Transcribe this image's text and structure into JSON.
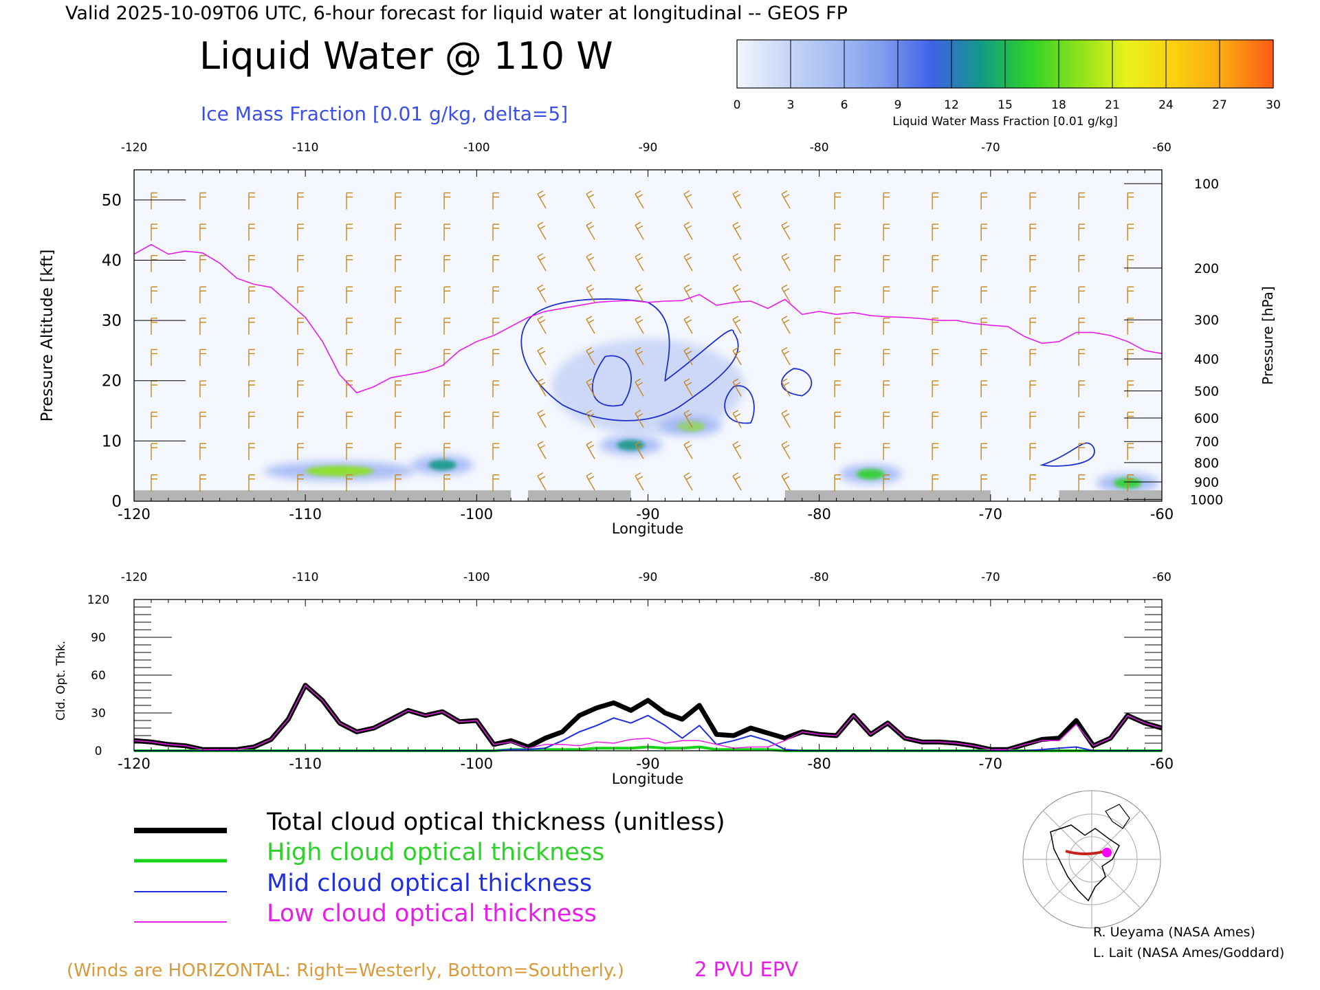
{
  "header": {
    "valid_line": "Valid 2025-10-09T06 UTC, 6-hour forecast for liquid water at longitudinal -- GEOS FP",
    "main_title": "Liquid Water @ 110 W",
    "subtitle": "Ice Mass Fraction [0.01 g/kg, delta=5]"
  },
  "colorbar": {
    "ticks": [
      "0",
      "3",
      "6",
      "9",
      "12",
      "15",
      "18",
      "21",
      "24",
      "27",
      "30"
    ],
    "label": "Liquid Water Mass Fraction [0.01 g/kg]",
    "colors": [
      "#f2f5fc",
      "#c9d7f7",
      "#a5bdf3",
      "#7f9cee",
      "#3f61e6",
      "#129a86",
      "#2ed12a",
      "#8be21a",
      "#e8f21a",
      "#fbcf10",
      "#fba513",
      "#fc5a16"
    ]
  },
  "chart_data": [
    {
      "type": "heatmap",
      "title": "Liquid Water @ 110 W",
      "xlabel": "Longitude",
      "ylabel": "Pressure Altitude [kft]",
      "ylabel_right": "Pressure [hPa]",
      "xlim": [
        -120,
        -60
      ],
      "ylim": [
        0,
        55
      ],
      "x_ticks": [
        "-120",
        "-110",
        "-100",
        "-90",
        "-80",
        "-70",
        "-60"
      ],
      "x_ticks_top": [
        "-120",
        "-110",
        "-100",
        "-90",
        "-80",
        "-70",
        "-60"
      ],
      "y_ticks": [
        "0",
        "10",
        "20",
        "30",
        "40",
        "50"
      ],
      "y_tick_values": [
        0,
        10,
        20,
        30,
        40,
        50
      ],
      "pressure_ticks": [
        {
          "label": "100",
          "alt": 52.7
        },
        {
          "label": "200",
          "alt": 38.7
        },
        {
          "label": "300",
          "alt": 30.1
        },
        {
          "label": "400",
          "alt": 23.6
        },
        {
          "label": "500",
          "alt": 18.3
        },
        {
          "label": "600",
          "alt": 13.8
        },
        {
          "label": "700",
          "alt": 9.9
        },
        {
          "label": "800",
          "alt": 6.4
        },
        {
          "label": "900",
          "alt": 3.2
        },
        {
          "label": "1000",
          "alt": 0.3
        }
      ],
      "pv2_line": {
        "name": "2 PVU EPV",
        "color": "#e81de8",
        "lon": [
          -120,
          -119,
          -118,
          -117,
          -116,
          -115,
          -114,
          -113,
          -112,
          -111,
          -110,
          -109,
          -108,
          -107,
          -106,
          -105,
          -104,
          -103,
          -102,
          -101,
          -100,
          -99,
          -98,
          -97,
          -96,
          -95,
          -94,
          -93,
          -92,
          -91,
          -90,
          -89,
          -88,
          -87,
          -86,
          -85,
          -84,
          -83,
          -82,
          -81,
          -80,
          -79,
          -78,
          -77,
          -76,
          -75,
          -74,
          -73,
          -72,
          -71,
          -70,
          -69,
          -68,
          -67,
          -66,
          -65,
          -64,
          -63,
          -62,
          -61,
          -60
        ],
        "alt": [
          41,
          42.6,
          41,
          41.5,
          41.2,
          39.5,
          37,
          36,
          35.5,
          33,
          30.5,
          26.5,
          21,
          18,
          19,
          20.5,
          21,
          21.5,
          22.5,
          25,
          26.5,
          27.5,
          29,
          30.5,
          31.5,
          32,
          32.5,
          33,
          33.2,
          33.3,
          33,
          33.2,
          33.3,
          34.3,
          32.5,
          33,
          33.2,
          32,
          33.5,
          31,
          31.5,
          31,
          31.3,
          30.8,
          30.6,
          30.5,
          30.3,
          30,
          30,
          29.5,
          29.2,
          29,
          27.3,
          26.2,
          26.5,
          28,
          28,
          27.5,
          26.5,
          25,
          24.5
        ]
      },
      "liquid_water_regions": [
        {
          "lon": -108,
          "alt": 5,
          "peak": 21
        },
        {
          "lon": -102,
          "alt": 6,
          "peak": 16
        },
        {
          "lon": -91,
          "alt": 9.3,
          "peak": 15
        },
        {
          "lon": -87.5,
          "alt": 12.5,
          "peak": 20
        },
        {
          "lon": -77,
          "alt": 4.5,
          "peak": 17
        },
        {
          "lon": -62,
          "alt": 3,
          "peak": 18
        }
      ]
    },
    {
      "type": "line",
      "xlabel": "Longitude",
      "ylabel": "Cld. Opt. Thk.",
      "xlim": [
        -120,
        -60
      ],
      "ylim": [
        0,
        120
      ],
      "x_ticks": [
        "-120",
        "-110",
        "-100",
        "-90",
        "-80",
        "-70",
        "-60"
      ],
      "x_ticks_top": [
        "-120",
        "-110",
        "-100",
        "-90",
        "-80",
        "-70",
        "-60"
      ],
      "y_ticks": [
        "0",
        "30",
        "60",
        "90",
        "120"
      ],
      "x": [
        -120,
        -119,
        -118,
        -117,
        -116,
        -115,
        -114,
        -113,
        -112,
        -111,
        -110,
        -109,
        -108,
        -107,
        -106,
        -105,
        -104,
        -103,
        -102,
        -101,
        -100,
        -99,
        -98,
        -97,
        -96,
        -95,
        -94,
        -93,
        -92,
        -91,
        -90,
        -89,
        -88,
        -87,
        -86,
        -85,
        -84,
        -83,
        -82,
        -81,
        -80,
        -79,
        -78,
        -77,
        -76,
        -75,
        -74,
        -73,
        -72,
        -71,
        -70,
        -69,
        -68,
        -67,
        -66,
        -65,
        -64,
        -63,
        -62,
        -61,
        -60
      ],
      "series": [
        {
          "name": "Total cloud optical thickness (unitless)",
          "color": "#000000",
          "values": [
            8,
            7,
            5,
            4,
            1,
            1,
            1,
            3,
            9,
            25,
            52,
            40,
            22,
            15,
            18,
            25,
            32,
            28,
            31,
            23,
            24,
            5,
            8,
            3,
            10,
            15,
            28,
            34,
            38,
            32,
            40,
            30,
            25,
            36,
            13,
            12,
            18,
            14,
            10,
            15,
            13,
            12,
            28,
            13,
            22,
            10,
            7,
            7,
            6,
            4,
            1,
            1,
            5,
            9,
            10,
            24,
            4,
            10,
            28,
            22,
            18
          ]
        },
        {
          "name": "High cloud optical thickness",
          "color": "#18d418",
          "values": [
            0,
            0,
            0,
            0,
            0,
            0,
            0,
            0,
            0,
            0,
            0,
            0,
            0,
            0,
            0,
            0,
            0,
            0,
            0,
            0,
            0,
            0,
            1,
            1,
            1,
            1,
            1,
            2,
            2,
            2,
            3,
            2,
            2,
            3,
            1,
            1,
            1,
            1,
            0,
            0,
            0,
            0,
            0,
            0,
            0,
            0,
            0,
            0,
            0,
            0,
            0,
            0,
            0,
            0,
            0,
            0,
            0,
            0,
            0,
            0,
            0
          ]
        },
        {
          "name": "Mid cloud optical thickness",
          "color": "#2030e0",
          "values": [
            0,
            0,
            0,
            0,
            0,
            0,
            0,
            0,
            0,
            0,
            0,
            0,
            0,
            0,
            0,
            0,
            0,
            0,
            0,
            0,
            0,
            0,
            1,
            1,
            2,
            8,
            15,
            20,
            26,
            22,
            28,
            20,
            10,
            20,
            5,
            8,
            12,
            8,
            1,
            0,
            0,
            0,
            0,
            0,
            0,
            0,
            0,
            0,
            0,
            0,
            0,
            0,
            0,
            1,
            2,
            3,
            0,
            0,
            0,
            0,
            0
          ]
        },
        {
          "name": "Low cloud optical thickness",
          "color": "#e81de8",
          "values": [
            8,
            7,
            5,
            4,
            1,
            1,
            1,
            3,
            9,
            25,
            52,
            40,
            22,
            15,
            18,
            25,
            32,
            28,
            31,
            23,
            24,
            5,
            7,
            2,
            5,
            5,
            4,
            7,
            6,
            9,
            10,
            6,
            8,
            8,
            5,
            2,
            3,
            3,
            8,
            15,
            13,
            12,
            28,
            13,
            22,
            10,
            7,
            7,
            6,
            4,
            1,
            1,
            5,
            8,
            8,
            21,
            4,
            10,
            28,
            22,
            18
          ]
        }
      ]
    }
  ],
  "legend": {
    "total": "Total cloud optical thickness (unitless)",
    "high": "High cloud optical thickness",
    "mid": "Mid cloud optical thickness",
    "low": "Low cloud optical thickness"
  },
  "footer": {
    "winds_note": "(Winds are HORIZONTAL: Right=Westerly, Bottom=Southerly.)",
    "pvu_label": "2 PVU EPV",
    "credit1": "R. Ueyama (NASA Ames)",
    "credit2": "L. Lait (NASA Ames/Goddard)"
  },
  "colors": {
    "wind_barbs": "#c8861a",
    "ice_contour": "#1c2fcf",
    "terrain": "#b4b4b4",
    "pv_line": "#e81de8",
    "legend_total": "#000000",
    "legend_high": "#18d418",
    "legend_mid": "#2030e0",
    "legend_low": "#e81de8",
    "winds_note": "#d89a3a"
  },
  "inset_map": {
    "icon": "north-america-polar-map-icon"
  }
}
